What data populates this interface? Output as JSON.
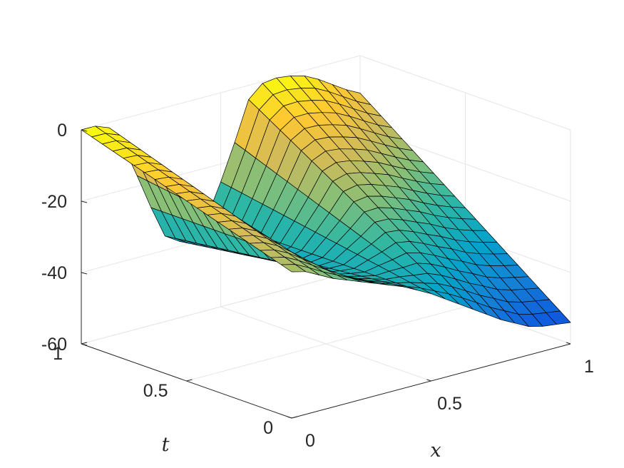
{
  "chart_data": {
    "type": "surface",
    "title": "",
    "xlabel": "x",
    "ylabel": "t",
    "zlabel": "",
    "xlim": [
      0,
      1
    ],
    "ylim": [
      0,
      1
    ],
    "zlim": [
      -60,
      0
    ],
    "x_ticks": [
      {
        "value": 0,
        "label": "0"
      },
      {
        "value": 0.5,
        "label": "0.5"
      },
      {
        "value": 1,
        "label": "1"
      }
    ],
    "t_ticks": [
      {
        "value": 0,
        "label": "0"
      },
      {
        "value": 0.5,
        "label": "0.5"
      },
      {
        "value": 1,
        "label": "1"
      }
    ],
    "z_ticks": [
      {
        "value": 0,
        "label": "0"
      },
      {
        "value": -20,
        "label": "-20"
      },
      {
        "value": -40,
        "label": "-40"
      },
      {
        "value": -60,
        "label": "-60"
      }
    ],
    "grid": true,
    "colormap": "parula",
    "colors": [
      "#352a87",
      "#0f5cdd",
      "#1481d6",
      "#06a4ca",
      "#2eb7a4",
      "#87bf77",
      "#d1bb59",
      "#fec832",
      "#f9fb0e"
    ],
    "edge_color": "#000000",
    "mesh": {
      "nx": 21,
      "nt": 21
    },
    "surface_t1": {
      "x": [
        0,
        0.05,
        0.1,
        0.15,
        0.2,
        0.25,
        0.3,
        0.35,
        0.4,
        0.45,
        0.5,
        0.55,
        0.6,
        0.65,
        0.7,
        0.75,
        0.8,
        0.85,
        0.9,
        0.95,
        1
      ],
      "z": [
        0,
        0,
        -1.5,
        -7.5,
        -17,
        -27,
        -36,
        -38.5,
        -37.5,
        -34,
        -25,
        -15,
        -4,
        -0.5,
        0,
        -0.5,
        -1.5,
        -3.5,
        -6,
        -8.5,
        -10.5
      ]
    },
    "surface_t0": {
      "x": [
        0,
        0.05,
        0.1,
        0.15,
        0.2,
        0.25,
        0.3,
        0.35,
        0.4,
        0.45,
        0.5,
        0.55,
        0.6,
        0.65,
        0.7,
        0.75,
        0.8,
        0.85,
        0.9,
        0.95,
        1
      ],
      "z": [
        -19,
        -20,
        -22,
        -24,
        -25.5,
        -27,
        -28.5,
        -30,
        -31.5,
        -33.5,
        -35.5,
        -38,
        -40.5,
        -43,
        -45.5,
        -48,
        -50,
        -52,
        -53,
        -53.5,
        -54
      ]
    }
  }
}
